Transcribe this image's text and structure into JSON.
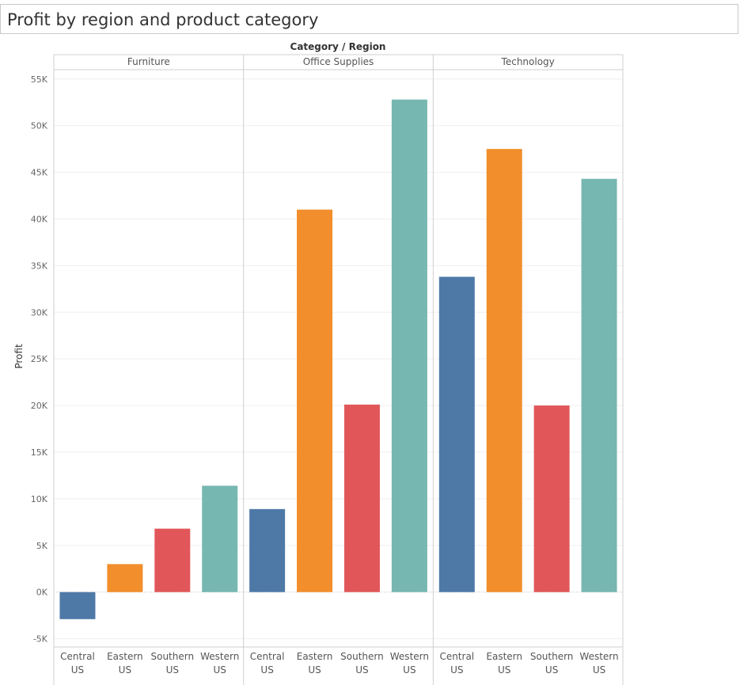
{
  "page": {
    "title": "Profit by region and product category"
  },
  "colors": {
    "Central US": "#4e79a7",
    "Eastern US": "#f28e2b",
    "Southern US": "#e15759",
    "Western US": "#76b7b2",
    "gridline": "#efefef",
    "divider": "#cfcfcf",
    "zero_line": "#bdbdbd"
  },
  "chart_data": {
    "type": "bar",
    "header_label": "Category / Region",
    "ylabel": "Profit",
    "ylim": [
      -5800,
      56000
    ],
    "yticks": [
      -5000,
      0,
      5000,
      10000,
      15000,
      20000,
      25000,
      30000,
      35000,
      40000,
      45000,
      50000,
      55000
    ],
    "ytick_labels": [
      "-5K",
      "0K",
      "5K",
      "10K",
      "15K",
      "20K",
      "25K",
      "30K",
      "35K",
      "40K",
      "45K",
      "50K",
      "55K"
    ],
    "grid": true,
    "legend": "none",
    "categories": [
      "Central US",
      "Eastern US",
      "Southern US",
      "Western US"
    ],
    "category_label_lines": [
      [
        "Central",
        "US"
      ],
      [
        "Eastern",
        "US"
      ],
      [
        "Southern",
        "US"
      ],
      [
        "Western",
        "US"
      ]
    ],
    "groups": [
      {
        "name": "Furniture",
        "values": [
          -2900,
          3000,
          6800,
          11400
        ]
      },
      {
        "name": "Office Supplies",
        "values": [
          8900,
          41000,
          20100,
          52800
        ]
      },
      {
        "name": "Technology",
        "values": [
          33800,
          47500,
          20000,
          44300
        ]
      }
    ]
  }
}
